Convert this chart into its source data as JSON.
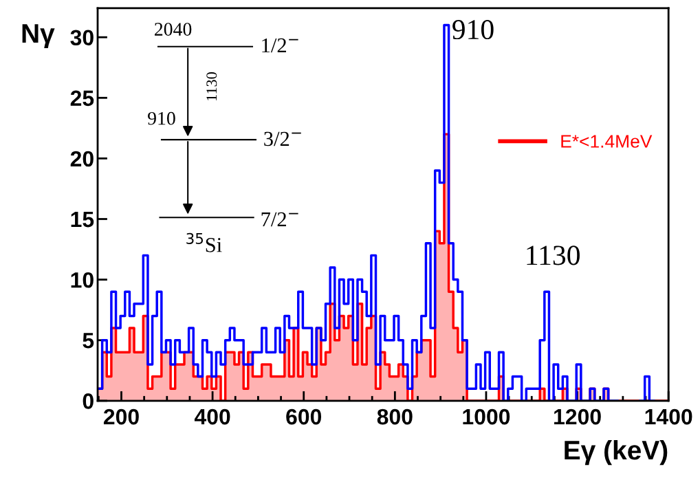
{
  "chart_data": {
    "type": "histogram",
    "xlabel": "Eγ (keV)",
    "ylabel": "Nγ",
    "bins": [
      148,
      158,
      168,
      178,
      188,
      198,
      208,
      218,
      228,
      238,
      248,
      258,
      268,
      278,
      288,
      298,
      308,
      318,
      328,
      338,
      348,
      358,
      368,
      378,
      388,
      398,
      408,
      418,
      428,
      438,
      448,
      458,
      468,
      478,
      488,
      498,
      508,
      518,
      528,
      538,
      548,
      558,
      568,
      578,
      588,
      598,
      608,
      618,
      628,
      638,
      648,
      658,
      668,
      678,
      688,
      698,
      708,
      718,
      728,
      738,
      748,
      758,
      768,
      778,
      788,
      798,
      808,
      818,
      828,
      838,
      848,
      858,
      868,
      878,
      888,
      898,
      908,
      918,
      928,
      938,
      948,
      958,
      968,
      978,
      988,
      998,
      1008,
      1018,
      1028,
      1038,
      1048,
      1058,
      1068,
      1078,
      1088,
      1098,
      1108,
      1118,
      1128,
      1138,
      1148,
      1158,
      1168,
      1178,
      1188,
      1198,
      1208,
      1218,
      1228,
      1238,
      1248,
      1258,
      1268,
      1278,
      1288,
      1298,
      1308,
      1318,
      1328,
      1338,
      1348,
      1358,
      1368,
      1378,
      1388,
      1398
    ],
    "series": [
      {
        "type": "step",
        "color": "#0000ff",
        "x": [
          148,
          158,
          168,
          178,
          188,
          198,
          208,
          218,
          228,
          238,
          248,
          258,
          268,
          278,
          288,
          298,
          308,
          318,
          328,
          338,
          348,
          358,
          368,
          378,
          388,
          398,
          408,
          418,
          428,
          438,
          448,
          458,
          468,
          478,
          488,
          498,
          508,
          518,
          528,
          538,
          548,
          558,
          568,
          578,
          588,
          598,
          608,
          618,
          628,
          638,
          648,
          658,
          668,
          678,
          688,
          698,
          708,
          718,
          728,
          738,
          748,
          758,
          768,
          778,
          788,
          798,
          808,
          818,
          828,
          838,
          848,
          858,
          868,
          878,
          888,
          898,
          908,
          918,
          928,
          938,
          948,
          958,
          968,
          978,
          988,
          998,
          1008,
          1018,
          1028,
          1038,
          1048,
          1058,
          1068,
          1078,
          1088,
          1098,
          1108,
          1118,
          1128,
          1138,
          1148,
          1158,
          1168,
          1178,
          1188,
          1198,
          1208,
          1218,
          1228,
          1238,
          1248,
          1258,
          1268,
          1278,
          1288,
          1298,
          1308,
          1318,
          1328,
          1338,
          1348,
          1358,
          1368
        ],
        "values": [
          1,
          5,
          4,
          9,
          6,
          7,
          9,
          7,
          8,
          8,
          12,
          3,
          7,
          9,
          4,
          5,
          3,
          5,
          4,
          4,
          6,
          3,
          2,
          5,
          4,
          2,
          4,
          3,
          5,
          6,
          5,
          5,
          3,
          3,
          4,
          4,
          6,
          4,
          4,
          6,
          4,
          7,
          6,
          6,
          9,
          6,
          6,
          3,
          6,
          5,
          8,
          11,
          6,
          10,
          8,
          10,
          5,
          10,
          9,
          7,
          12,
          3,
          7,
          5,
          5,
          7,
          5,
          3,
          1,
          5,
          4,
          7,
          13,
          6,
          19,
          18,
          31,
          13,
          10,
          9,
          5,
          1,
          1,
          3,
          1,
          4,
          1,
          1,
          4,
          0,
          1,
          2,
          2,
          0,
          1,
          1,
          1,
          5,
          9,
          0,
          3,
          1,
          2,
          0,
          0,
          3,
          0,
          0,
          1,
          0,
          0,
          1,
          0,
          0,
          null,
          null,
          null,
          null,
          null,
          0,
          2,
          0,
          0
        ]
      },
      {
        "name": "E*<1.4MeV",
        "color": "#ff0000",
        "values": [
          1,
          4,
          2,
          6,
          4,
          4,
          4,
          6,
          4,
          4,
          7,
          1,
          2,
          2,
          4,
          4,
          1,
          3,
          3,
          4,
          4,
          2,
          2,
          1,
          2,
          1,
          2,
          0,
          4,
          4,
          3,
          4,
          1,
          4,
          2,
          2,
          3,
          3,
          2,
          2,
          2,
          5,
          2,
          6,
          2,
          4,
          3,
          2,
          6,
          3,
          4,
          8,
          5,
          7,
          6,
          7,
          3,
          8,
          3,
          6,
          7,
          1,
          4,
          3,
          2,
          2,
          3,
          2,
          0,
          2,
          4,
          5,
          5,
          2,
          14,
          13,
          22,
          9,
          6,
          4,
          5,
          0,
          0,
          0,
          0,
          0,
          0,
          0,
          2,
          0,
          0,
          0,
          0,
          0,
          0,
          0,
          0,
          1,
          0,
          0,
          0,
          0,
          1,
          0,
          0,
          1,
          0,
          0,
          1,
          0,
          0,
          1,
          0,
          0,
          0,
          0,
          0,
          0,
          0,
          0,
          0,
          0,
          0,
          0,
          0
        ]
      }
    ],
    "xlim": [
      148,
      1400
    ],
    "xticks": [
      {
        "value": 150,
        "label": null
      },
      200,
      {
        "value": 250,
        "label": null
      },
      {
        "value": 300,
        "label": null
      },
      {
        "value": 350,
        "label": null
      },
      400,
      {
        "value": 450,
        "label": null
      },
      {
        "value": 500,
        "label": null
      },
      {
        "value": 550,
        "label": null
      },
      600,
      {
        "value": 650,
        "label": null
      },
      {
        "value": 700,
        "label": null
      },
      {
        "value": 750,
        "label": null
      },
      800,
      {
        "value": 850,
        "label": null
      },
      {
        "value": 900,
        "label": null
      },
      {
        "value": 950,
        "label": null
      },
      1000,
      {
        "value": 1050,
        "label": null
      },
      {
        "value": 1100,
        "label": null
      },
      {
        "value": 1150,
        "label": null
      },
      1200,
      {
        "value": 1250,
        "label": null
      },
      {
        "value": 1300,
        "label": null
      },
      {
        "value": 1350,
        "label": null
      },
      1400
    ],
    "ylim": [
      0,
      32.4
    ],
    "yticks": [
      0,
      5,
      10,
      15,
      20,
      25,
      30
    ],
    "grid": false,
    "legend": "right",
    "annotations": [
      "910",
      "1130",
      "2040",
      "1/2$^{−}$",
      "1130",
      "910",
      "3/2$^{−}$",
      "7/2$^{−}$",
      "$^{35}$Si"
    ]
  }
}
